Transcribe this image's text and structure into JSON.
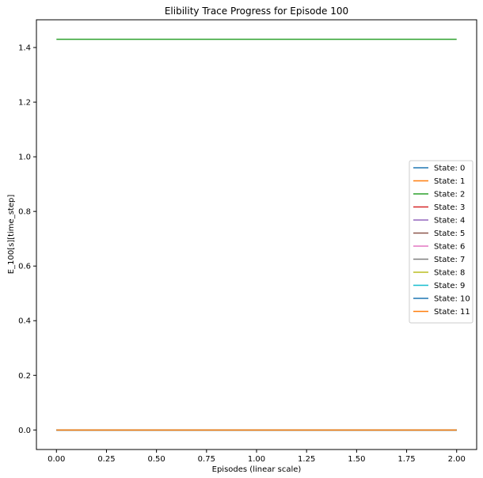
{
  "chart_data": {
    "type": "line",
    "title": "Elibility Trace Progress for Episode 100",
    "xlabel": "Episodes (linear scale)",
    "ylabel": "E_100[s][time_step]",
    "xlim": [
      -0.1,
      2.1
    ],
    "ylim": [
      -0.0715,
      1.5015
    ],
    "xticks": [
      0.0,
      0.25,
      0.5,
      0.75,
      1.0,
      1.25,
      1.5,
      1.75,
      2.0
    ],
    "xtick_labels": [
      "0.00",
      "0.25",
      "0.50",
      "0.75",
      "1.00",
      "1.25",
      "1.50",
      "1.75",
      "2.00"
    ],
    "yticks": [
      0.0,
      0.2,
      0.4,
      0.6,
      0.8,
      1.0,
      1.2,
      1.4
    ],
    "ytick_labels": [
      "0.0",
      "0.2",
      "0.4",
      "0.6",
      "0.8",
      "1.0",
      "1.2",
      "1.4"
    ],
    "grid": false,
    "legend_position": "center-right",
    "x": [
      0,
      1,
      2
    ],
    "series": [
      {
        "name": "State: 0",
        "color": "#1f77b4",
        "values": [
          0,
          0,
          0
        ]
      },
      {
        "name": "State: 1",
        "color": "#ff7f0e",
        "values": [
          0,
          0,
          0
        ]
      },
      {
        "name": "State: 2",
        "color": "#2ca02c",
        "values": [
          1.43,
          1.43,
          1.43
        ]
      },
      {
        "name": "State: 3",
        "color": "#d62728",
        "values": [
          0,
          0,
          0
        ]
      },
      {
        "name": "State: 4",
        "color": "#9467bd",
        "values": [
          0,
          0,
          0
        ]
      },
      {
        "name": "State: 5",
        "color": "#8c564b",
        "values": [
          0,
          0,
          0
        ]
      },
      {
        "name": "State: 6",
        "color": "#e377c2",
        "values": [
          0,
          0,
          0
        ]
      },
      {
        "name": "State: 7",
        "color": "#7f7f7f",
        "values": [
          0,
          0,
          0
        ]
      },
      {
        "name": "State: 8",
        "color": "#bcbd22",
        "values": [
          0,
          0,
          0
        ]
      },
      {
        "name": "State: 9",
        "color": "#17becf",
        "values": [
          0,
          0,
          0
        ]
      },
      {
        "name": "State: 10",
        "color": "#1f77b4",
        "values": [
          0,
          0,
          0
        ]
      },
      {
        "name": "State: 11",
        "color": "#ff7f0e",
        "values": [
          0,
          0,
          0
        ]
      }
    ]
  }
}
